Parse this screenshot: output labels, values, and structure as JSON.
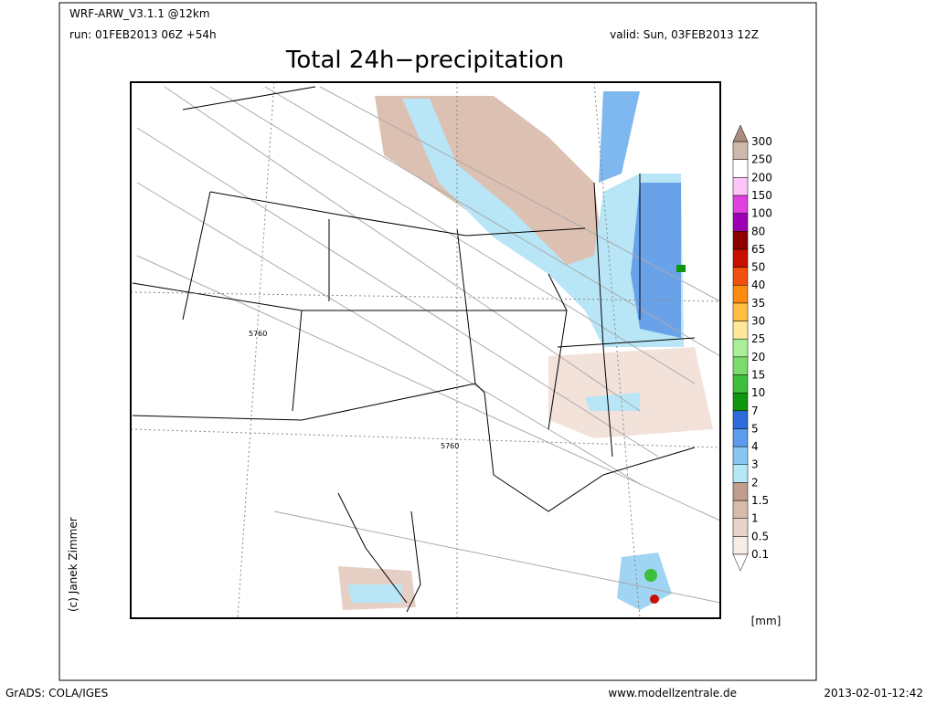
{
  "header": {
    "model": "WRF-ARW_V3.1.1 @12km",
    "run": "run: 01FEB2013 06Z +54h",
    "valid": "valid: Sun, 03FEB2013 12Z"
  },
  "title": "Total 24h−precipitation",
  "map": {
    "contour_labels": [
      "5760",
      "5760"
    ],
    "credit": "(c) Janek Zimmer"
  },
  "legend": {
    "levels": [
      "0.1",
      "0.5",
      "1",
      "1.5",
      "2",
      "3",
      "4",
      "5",
      "7",
      "10",
      "15",
      "20",
      "25",
      "30",
      "35",
      "40",
      "50",
      "65",
      "80",
      "100",
      "150",
      "200",
      "250",
      "300"
    ],
    "colors": [
      "#ffffff",
      "#f8ece6",
      "#ead4ca",
      "#d8baac",
      "#c09c8c",
      "#b4e8f6",
      "#86c8f2",
      "#5c9cec",
      "#2c6cdc",
      "#0e960e",
      "#3cc03c",
      "#7adc6a",
      "#aaf09a",
      "#ffe89a",
      "#ffbe40",
      "#ff8a10",
      "#f05010",
      "#c81000",
      "#8c0000",
      "#9c00b4",
      "#e040e0",
      "#ffc4f8",
      "#ffffff",
      "#cdb8ac",
      "#a88c7e"
    ],
    "unit": "[mm]"
  },
  "footer": {
    "left": "GrADS: COLA/IGES",
    "center": "www.modellzentrale.de",
    "right": "2013-02-01-12:42"
  }
}
